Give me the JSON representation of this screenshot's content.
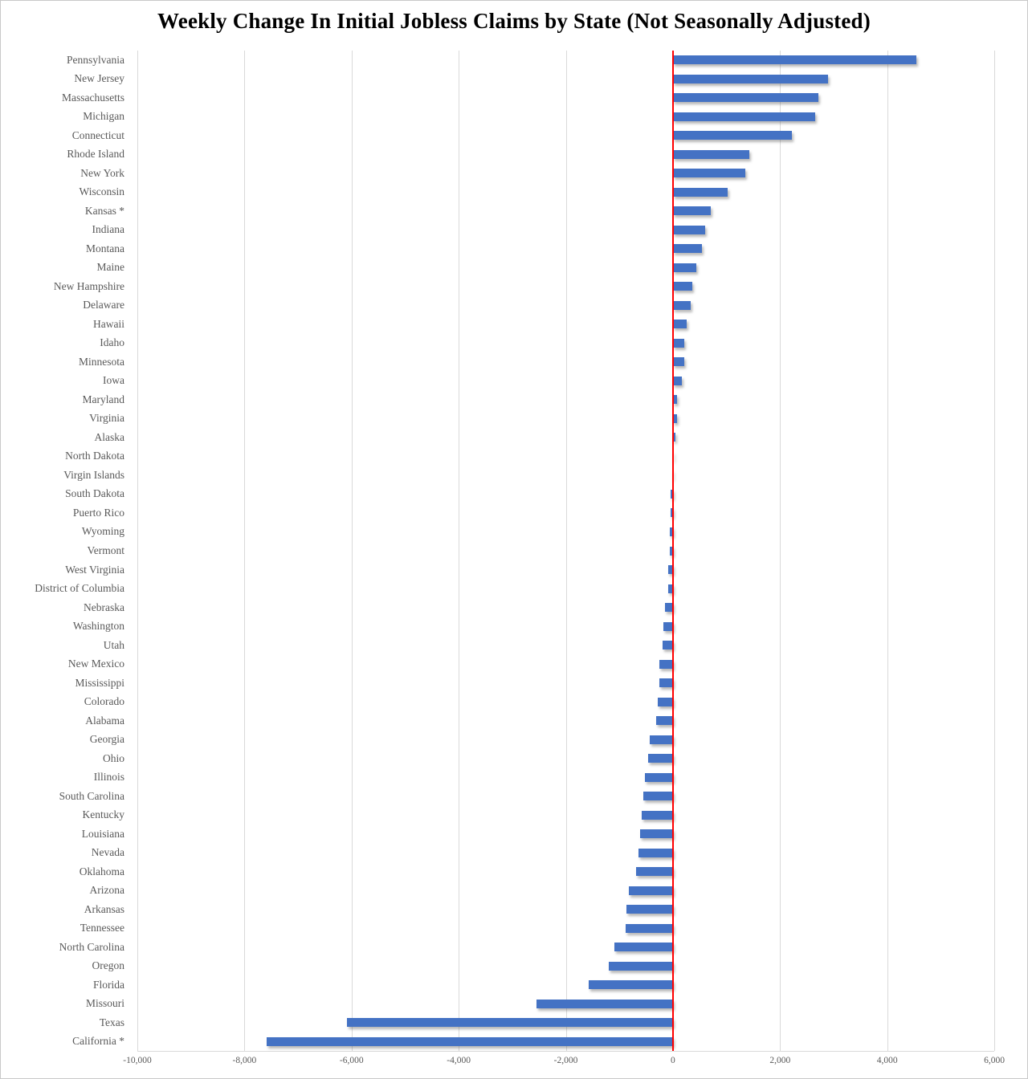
{
  "title": "Weekly Change In Initial Jobless Claims by State (Not Seasonally Adjusted)",
  "chart_data": {
    "type": "bar",
    "orientation": "horizontal",
    "title": "Weekly Change In Initial Jobless Claims by State (Not Seasonally Adjusted)",
    "categories": [
      "Pennsylvania",
      "New Jersey",
      "Massachusetts",
      "Michigan",
      "Connecticut",
      "Rhode Island",
      "New York",
      "Wisconsin",
      "Kansas *",
      "Indiana",
      "Montana",
      "Maine",
      "New Hampshire",
      "Delaware",
      "Hawaii",
      "Idaho",
      "Minnesota",
      "Iowa",
      "Maryland",
      "Virginia",
      "Alaska",
      "North Dakota",
      "Virgin Islands",
      "South Dakota",
      "Puerto Rico",
      "Wyoming",
      "Vermont",
      "West Virginia",
      "District of Columbia",
      "Nebraska",
      "Washington",
      "Utah",
      "New Mexico",
      "Mississippi",
      "Colorado",
      "Alabama",
      "Georgia",
      "Ohio",
      "Illinois",
      "South Carolina",
      "Kentucky",
      "Louisiana",
      "Nevada",
      "Oklahoma",
      "Arizona",
      "Arkansas",
      "Tennessee",
      "North Carolina",
      "Oregon",
      "Florida",
      "Missouri",
      "Texas",
      "California *"
    ],
    "values": [
      4550,
      2900,
      2710,
      2650,
      2220,
      1430,
      1350,
      1020,
      700,
      600,
      545,
      430,
      360,
      330,
      260,
      215,
      210,
      170,
      80,
      70,
      50,
      15,
      -10,
      -45,
      -50,
      -55,
      -60,
      -85,
      -90,
      -155,
      -180,
      -200,
      -250,
      -260,
      -280,
      -320,
      -430,
      -470,
      -530,
      -560,
      -590,
      -620,
      -640,
      -690,
      -820,
      -870,
      -890,
      -1100,
      -1200,
      -1570,
      -2540,
      -6080,
      -7580
    ],
    "xlabel": "",
    "ylabel": "",
    "xlim": [
      -10000,
      6000
    ],
    "x_tick_interval": 2000,
    "x_tick_labels": [
      "-10,000",
      "-8,000",
      "-6,000",
      "-4,000",
      "-2,000",
      "0",
      "2,000",
      "4,000",
      "6,000"
    ],
    "grid": "vertical",
    "legend_position": "none",
    "zero_line_color": "#FF0000",
    "bar_color": "#4472C4",
    "gridline_color": "#D9D9D9",
    "label_color": "#595959",
    "title_color": "#000000"
  }
}
